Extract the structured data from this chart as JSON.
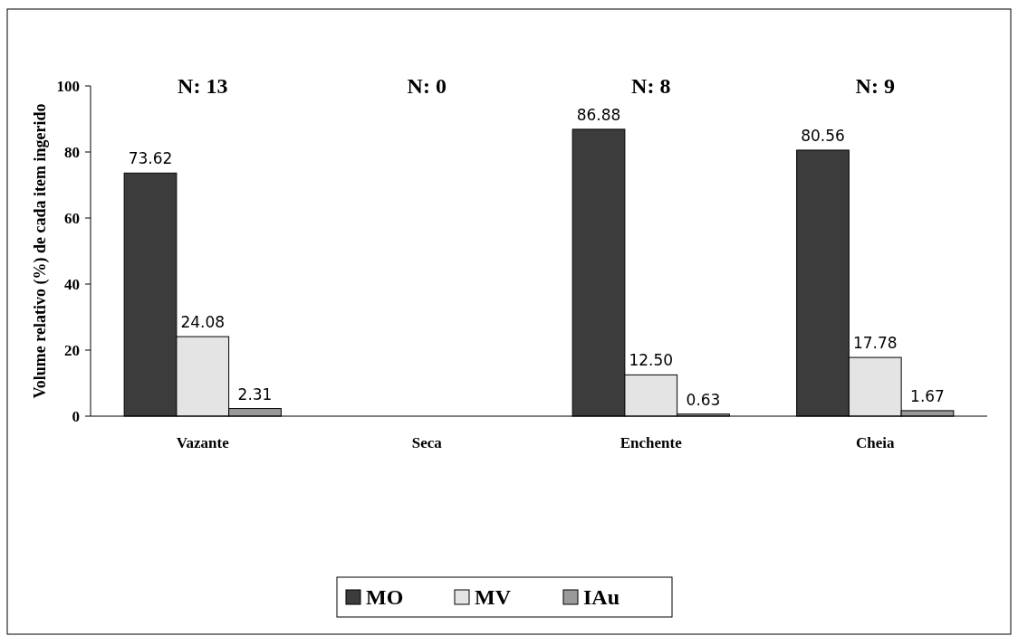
{
  "chart_data": {
    "type": "bar",
    "ylabel": "Volume relativo (%) de cada item ingerido",
    "categories": [
      "Vazante",
      "Seca",
      "Enchente",
      "Cheia"
    ],
    "series": [
      {
        "name": "MO",
        "color": "#3c3c3c",
        "values": [
          73.62,
          null,
          86.88,
          80.56
        ],
        "value_labels": [
          "73.62",
          null,
          "86.88",
          "80.56"
        ]
      },
      {
        "name": "MV",
        "color": "#e4e4e4",
        "values": [
          24.08,
          null,
          12.5,
          17.78
        ],
        "value_labels": [
          "24.08",
          null,
          "12.50",
          "17.78"
        ]
      },
      {
        "name": "IAu",
        "color": "#9a9a9a",
        "values": [
          2.31,
          null,
          0.63,
          1.67
        ],
        "value_labels": [
          "2.31",
          null,
          "0.63",
          "1.67"
        ]
      }
    ],
    "annotations": [
      "N: 13",
      "N: 0",
      "N: 8",
      "N: 9"
    ],
    "ylim": [
      0,
      100
    ],
    "yticks": [
      0,
      20,
      40,
      60,
      80,
      100
    ],
    "grid": false,
    "legend": "bottom"
  }
}
